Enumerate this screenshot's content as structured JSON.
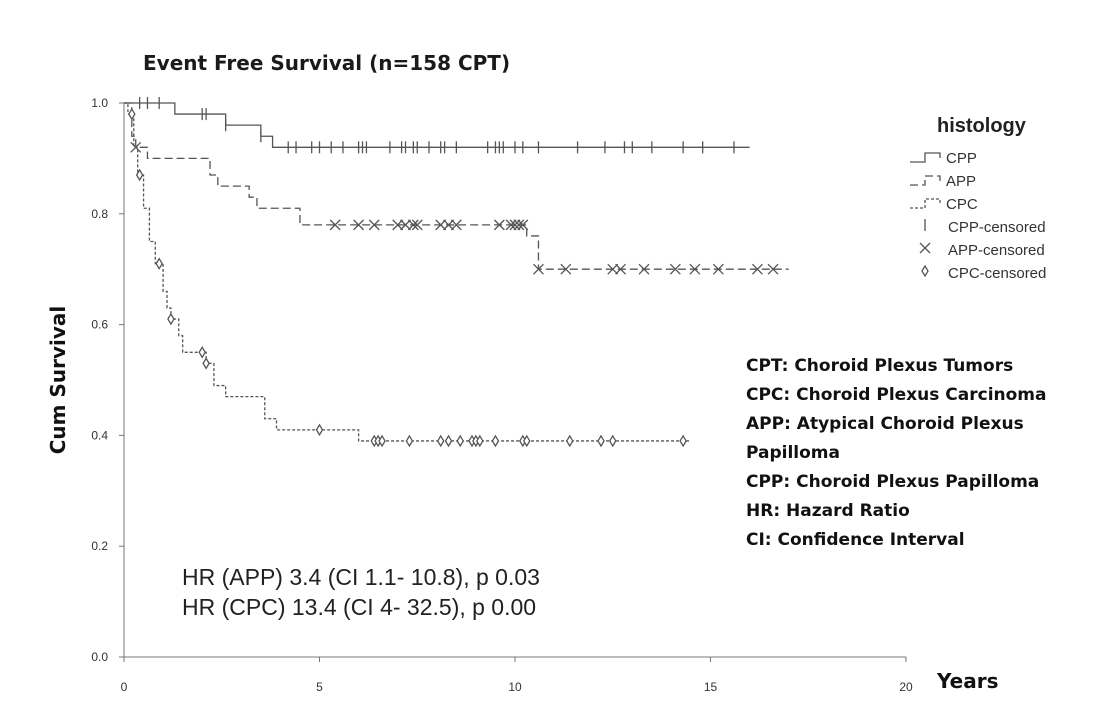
{
  "chart_data": {
    "type": "line",
    "title": "Event Free Survival (n=158 CPT)",
    "xlabel": "Years",
    "ylabel": "Cum Survival",
    "xlim": [
      0,
      20
    ],
    "ylim": [
      0.0,
      1.0
    ],
    "xticks": [
      0,
      5,
      10,
      15,
      20
    ],
    "yticks": [
      0.0,
      0.2,
      0.4,
      0.6,
      0.8,
      1.0
    ],
    "xtick_labels": [
      "0",
      "5",
      "10",
      "15",
      "20"
    ],
    "ytick_labels": [
      "0.0",
      "0.2",
      "0.4",
      "0.6",
      "0.8",
      "1.0"
    ],
    "legend": {
      "title": "histology",
      "position": "top-right",
      "entries": [
        {
          "label": "CPP",
          "kind": "line",
          "dash": "solid"
        },
        {
          "label": "APP",
          "kind": "line",
          "dash": "dashed"
        },
        {
          "label": "CPC",
          "kind": "line",
          "dash": "dotted"
        },
        {
          "label": "CPP-censored",
          "kind": "marker",
          "marker": "bar"
        },
        {
          "label": "APP-censored",
          "kind": "marker",
          "marker": "x"
        },
        {
          "label": "CPC-censored",
          "kind": "marker",
          "marker": "diamond"
        }
      ]
    },
    "series": [
      {
        "name": "CPP",
        "dash": "solid",
        "steps": [
          [
            0,
            1.0
          ],
          [
            1.3,
            0.98
          ],
          [
            2.6,
            0.96
          ],
          [
            3.5,
            0.94
          ],
          [
            3.8,
            0.92
          ],
          [
            16.0,
            0.92
          ]
        ],
        "censor_marker": "bar",
        "censored": [
          0.4,
          0.6,
          0.9,
          2.0,
          2.1,
          2.6,
          3.5,
          4.2,
          4.4,
          4.8,
          5.0,
          5.3,
          5.6,
          6.0,
          6.1,
          6.2,
          6.8,
          7.1,
          7.2,
          7.4,
          7.5,
          7.8,
          8.1,
          8.2,
          8.5,
          9.3,
          9.5,
          9.6,
          9.7,
          10.0,
          10.2,
          10.6,
          11.6,
          12.3,
          12.8,
          13.0,
          13.5,
          14.3,
          14.8,
          15.6
        ]
      },
      {
        "name": "APP",
        "dash": "dashed",
        "steps": [
          [
            0,
            1.0
          ],
          [
            0.2,
            0.94
          ],
          [
            0.3,
            0.92
          ],
          [
            0.6,
            0.9
          ],
          [
            2.2,
            0.87
          ],
          [
            2.4,
            0.85
          ],
          [
            3.2,
            0.83
          ],
          [
            3.4,
            0.81
          ],
          [
            4.5,
            0.78
          ],
          [
            10.3,
            0.76
          ],
          [
            10.6,
            0.7
          ],
          [
            17.0,
            0.7
          ]
        ],
        "censor_marker": "x",
        "censored": [
          0.3,
          5.4,
          6.0,
          6.4,
          7.0,
          7.2,
          7.4,
          7.5,
          8.1,
          8.3,
          8.5,
          9.6,
          9.9,
          10.0,
          10.1,
          10.2,
          10.6,
          11.3,
          12.5,
          12.7,
          13.3,
          14.1,
          14.6,
          15.2,
          16.2,
          16.6
        ]
      },
      {
        "name": "CPC",
        "dash": "dotted",
        "steps": [
          [
            0,
            1.0
          ],
          [
            0.1,
            0.98
          ],
          [
            0.25,
            0.92
          ],
          [
            0.35,
            0.87
          ],
          [
            0.5,
            0.81
          ],
          [
            0.65,
            0.75
          ],
          [
            0.8,
            0.71
          ],
          [
            1.0,
            0.66
          ],
          [
            1.1,
            0.63
          ],
          [
            1.2,
            0.61
          ],
          [
            1.4,
            0.58
          ],
          [
            1.5,
            0.55
          ],
          [
            2.1,
            0.53
          ],
          [
            2.3,
            0.49
          ],
          [
            2.6,
            0.47
          ],
          [
            3.6,
            0.43
          ],
          [
            3.9,
            0.41
          ],
          [
            6.0,
            0.39
          ],
          [
            14.5,
            0.39
          ]
        ],
        "censor_marker": "diamond",
        "censored": [
          0.2,
          0.4,
          0.9,
          1.2,
          2.0,
          2.1,
          5.0,
          6.4,
          6.5,
          6.6,
          7.3,
          8.1,
          8.3,
          8.6,
          8.9,
          9.0,
          9.1,
          9.5,
          10.2,
          10.3,
          11.4,
          12.2,
          12.5,
          14.3
        ]
      }
    ]
  },
  "hazard_ratios": [
    "HR (APP) 3.4 (CI 1.1- 10.8), p 0.03",
    "HR (CPC) 13.4 (CI 4- 32.5), p 0.00"
  ],
  "abbreviations": [
    "CPT: Choroid Plexus Tumors",
    "CPC: Choroid Plexus Carcinoma",
    "APP: Atypical Choroid Plexus",
    "Papilloma",
    "CPP: Choroid Plexus Papilloma",
    "HR: Hazard Ratio",
    "CI: Confidence Interval"
  ],
  "colors": {
    "line": "#555555",
    "axis": "#777777",
    "text": "#222222"
  }
}
